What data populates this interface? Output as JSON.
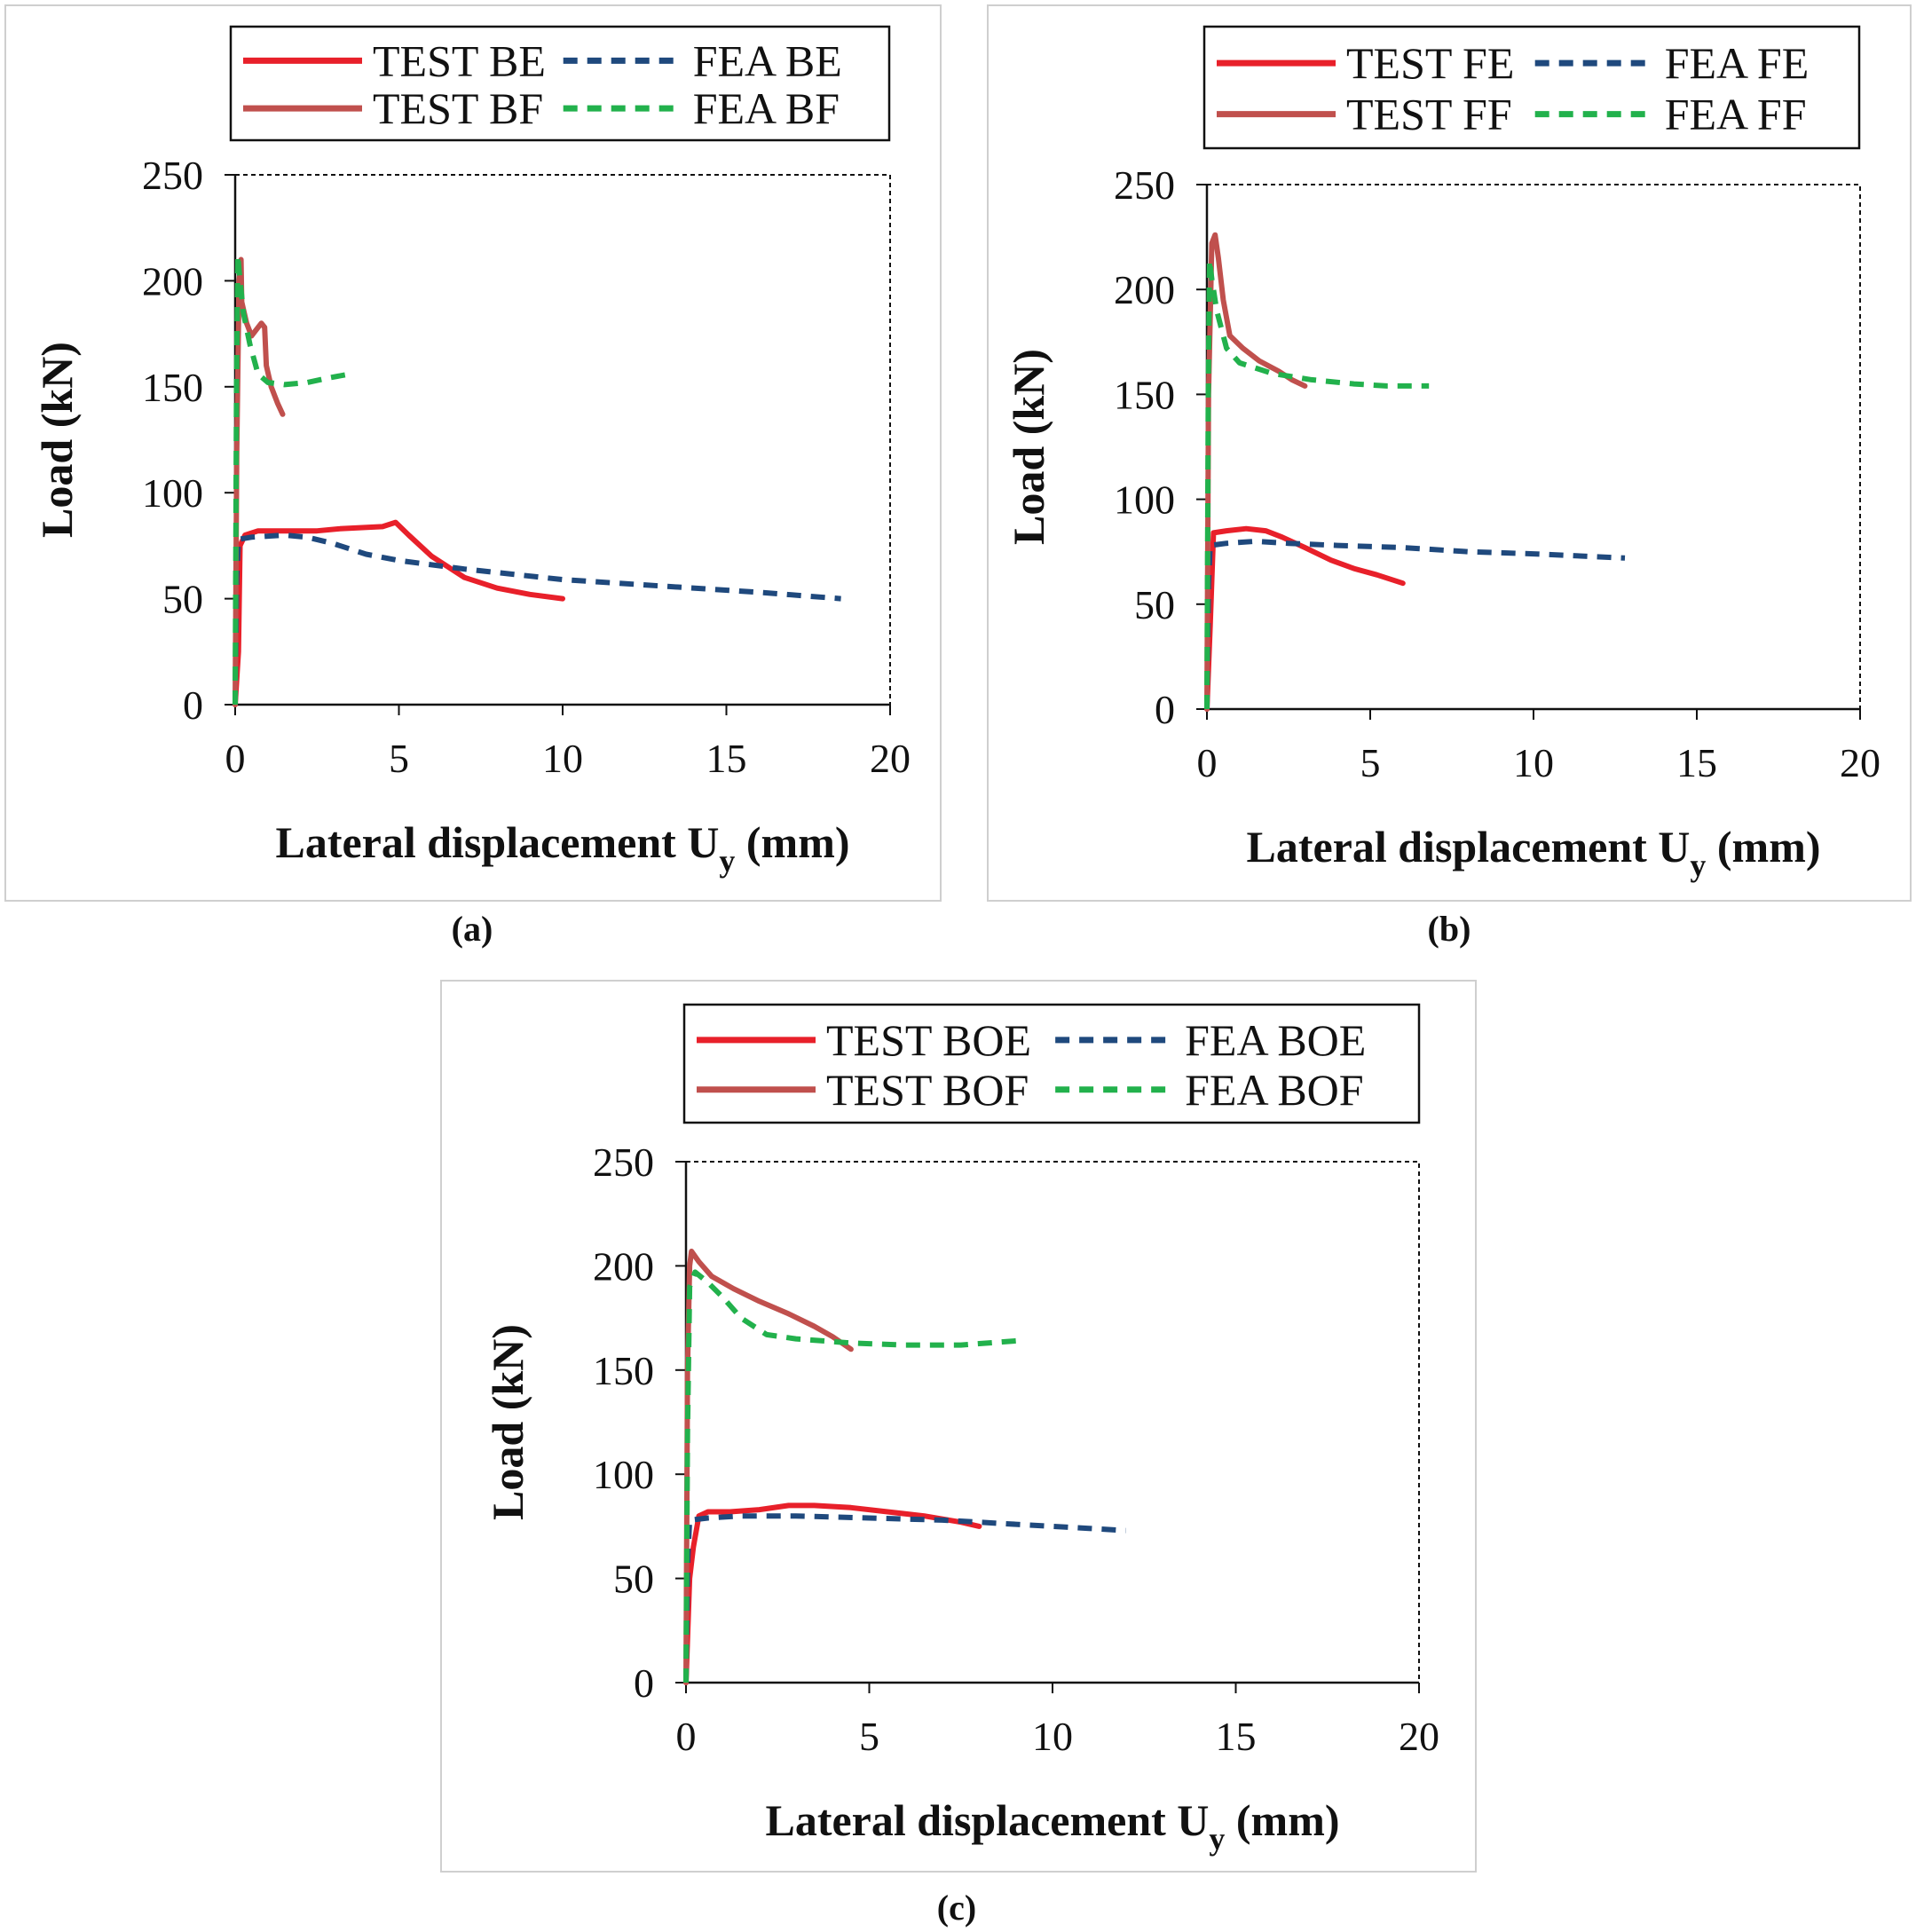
{
  "colors": {
    "test_e": "#e8202a",
    "test_f": "#c0504d",
    "fea_e": "#1f497d",
    "fea_f": "#22b14c",
    "panel_border": "#cfcfcf",
    "axis": "#111111"
  },
  "chart_data": [
    {
      "id": "a",
      "type": "line",
      "caption": "(a)",
      "xlabel": "Lateral displacement U",
      "xlabel_sub": "y",
      "xlabel_unit": "(mm)",
      "ylabel": "Load (kN)",
      "xlim": [
        0,
        20
      ],
      "ylim": [
        0,
        250
      ],
      "xticks": [
        0,
        5,
        10,
        15,
        20
      ],
      "yticks": [
        0,
        50,
        100,
        150,
        200,
        250
      ],
      "legend_position": "top",
      "series": [
        {
          "name": "TEST BE",
          "style": "solid",
          "colorKey": "test_e",
          "points": [
            [
              0,
              0
            ],
            [
              0.1,
              25
            ],
            [
              0.15,
              75
            ],
            [
              0.3,
              80
            ],
            [
              0.7,
              82
            ],
            [
              1.5,
              82
            ],
            [
              2.5,
              82
            ],
            [
              3.2,
              83
            ],
            [
              4.5,
              84
            ],
            [
              4.9,
              86
            ],
            [
              5.3,
              80
            ],
            [
              6,
              70
            ],
            [
              7,
              60
            ],
            [
              8,
              55
            ],
            [
              9,
              52
            ],
            [
              10,
              50
            ]
          ]
        },
        {
          "name": "FEA BE",
          "style": "dashed",
          "colorKey": "fea_e",
          "points": [
            [
              0,
              0
            ],
            [
              0.05,
              60
            ],
            [
              0.1,
              78
            ],
            [
              0.5,
              79
            ],
            [
              1.5,
              80
            ],
            [
              2.2,
              79
            ],
            [
              3,
              76
            ],
            [
              4,
              71
            ],
            [
              5,
              68
            ],
            [
              7,
              64
            ],
            [
              10,
              59
            ],
            [
              13,
              56
            ],
            [
              16,
              53
            ],
            [
              18.5,
              50
            ]
          ]
        },
        {
          "name": "TEST BF",
          "style": "solid",
          "colorKey": "test_f",
          "points": [
            [
              0,
              0
            ],
            [
              0.05,
              120
            ],
            [
              0.12,
              200
            ],
            [
              0.18,
              210
            ],
            [
              0.2,
              190
            ],
            [
              0.35,
              180
            ],
            [
              0.5,
              174
            ],
            [
              0.7,
              178
            ],
            [
              0.8,
              180
            ],
            [
              0.9,
              178
            ],
            [
              0.95,
              160
            ],
            [
              1.1,
              150
            ],
            [
              1.3,
              142
            ],
            [
              1.45,
              137
            ]
          ]
        },
        {
          "name": "FEA BF",
          "style": "dashed",
          "colorKey": "fea_f",
          "points": [
            [
              0,
              0
            ],
            [
              0.04,
              150
            ],
            [
              0.08,
              212
            ],
            [
              0.12,
              205
            ],
            [
              0.25,
              185
            ],
            [
              0.45,
              170
            ],
            [
              0.7,
              156
            ],
            [
              1,
              152
            ],
            [
              1.5,
              151
            ],
            [
              2.2,
              152
            ],
            [
              2.8,
              154
            ],
            [
              3.5,
              156
            ]
          ]
        }
      ]
    },
    {
      "id": "b",
      "type": "line",
      "caption": "(b)",
      "xlabel": "Lateral displacement U",
      "xlabel_sub": "y",
      "xlabel_unit": "(mm)",
      "ylabel": "Load (kN)",
      "xlim": [
        0,
        20
      ],
      "ylim": [
        0,
        250
      ],
      "xticks": [
        0,
        5,
        10,
        15,
        20
      ],
      "yticks": [
        0,
        50,
        100,
        150,
        200,
        250
      ],
      "legend_position": "top",
      "series": [
        {
          "name": "TEST FE",
          "style": "solid",
          "colorKey": "test_e",
          "points": [
            [
              0,
              0
            ],
            [
              0.1,
              40
            ],
            [
              0.2,
              84
            ],
            [
              0.6,
              85
            ],
            [
              1.2,
              86
            ],
            [
              1.8,
              85
            ],
            [
              2.3,
              82
            ],
            [
              3,
              77
            ],
            [
              3.8,
              71
            ],
            [
              4.5,
              67
            ],
            [
              5.2,
              64
            ],
            [
              6,
              60
            ]
          ]
        },
        {
          "name": "FEA FE",
          "style": "dashed",
          "colorKey": "fea_e",
          "points": [
            [
              0,
              0
            ],
            [
              0.05,
              60
            ],
            [
              0.1,
              78
            ],
            [
              0.6,
              79
            ],
            [
              1.5,
              80
            ],
            [
              2.5,
              79
            ],
            [
              4,
              78
            ],
            [
              6,
              77
            ],
            [
              8,
              75
            ],
            [
              10,
              74
            ],
            [
              12.8,
              72
            ]
          ]
        },
        {
          "name": "TEST FF",
          "style": "solid",
          "colorKey": "test_f",
          "points": [
            [
              0,
              0
            ],
            [
              0.05,
              150
            ],
            [
              0.15,
              222
            ],
            [
              0.25,
              226
            ],
            [
              0.35,
              215
            ],
            [
              0.5,
              195
            ],
            [
              0.7,
              178
            ],
            [
              1.1,
              172
            ],
            [
              1.6,
              166
            ],
            [
              2.2,
              161
            ],
            [
              2.6,
              157
            ],
            [
              3,
              154
            ]
          ]
        },
        {
          "name": "FEA FF",
          "style": "dashed",
          "colorKey": "fea_f",
          "points": [
            [
              0,
              0
            ],
            [
              0.04,
              150
            ],
            [
              0.08,
              214
            ],
            [
              0.15,
              205
            ],
            [
              0.3,
              190
            ],
            [
              0.6,
              172
            ],
            [
              1,
              165
            ],
            [
              2,
              160
            ],
            [
              3.2,
              157
            ],
            [
              4.5,
              155
            ],
            [
              5.5,
              154
            ],
            [
              6.8,
              154
            ]
          ]
        }
      ]
    },
    {
      "id": "c",
      "type": "line",
      "caption": "(c)",
      "xlabel": "Lateral displacement U",
      "xlabel_sub": "y",
      "xlabel_unit": "(mm)",
      "ylabel": "Load (kN)",
      "xlim": [
        0,
        20
      ],
      "ylim": [
        0,
        250
      ],
      "xticks": [
        0,
        5,
        10,
        15,
        20
      ],
      "yticks": [
        0,
        50,
        100,
        150,
        200,
        250
      ],
      "legend_position": "top",
      "series": [
        {
          "name": "TEST BOE",
          "style": "solid",
          "colorKey": "test_e",
          "points": [
            [
              0,
              0
            ],
            [
              0.1,
              50
            ],
            [
              0.2,
              65
            ],
            [
              0.35,
              80
            ],
            [
              0.6,
              82
            ],
            [
              1.2,
              82
            ],
            [
              2,
              83
            ],
            [
              2.8,
              85
            ],
            [
              3.5,
              85
            ],
            [
              4.5,
              84
            ],
            [
              5.5,
              82
            ],
            [
              6.5,
              80
            ],
            [
              7.5,
              77
            ],
            [
              8,
              75
            ]
          ]
        },
        {
          "name": "FEA BOE",
          "style": "dashed",
          "colorKey": "fea_e",
          "points": [
            [
              0,
              0
            ],
            [
              0.05,
              60
            ],
            [
              0.1,
              78
            ],
            [
              0.6,
              79
            ],
            [
              1.5,
              80
            ],
            [
              3,
              80
            ],
            [
              5,
              79
            ],
            [
              7,
              78
            ],
            [
              9,
              76
            ],
            [
              11,
              74
            ],
            [
              12,
              73
            ]
          ]
        },
        {
          "name": "TEST BOF",
          "style": "solid",
          "colorKey": "test_f",
          "points": [
            [
              0,
              0
            ],
            [
              0.04,
              150
            ],
            [
              0.1,
              200
            ],
            [
              0.15,
              207
            ],
            [
              0.35,
              202
            ],
            [
              0.7,
              195
            ],
            [
              1.3,
              189
            ],
            [
              2,
              183
            ],
            [
              2.8,
              177
            ],
            [
              3.5,
              171
            ],
            [
              4,
              166
            ],
            [
              4.5,
              160
            ]
          ]
        },
        {
          "name": "FEA BOF",
          "style": "dashed",
          "colorKey": "fea_f",
          "points": [
            [
              0,
              0
            ],
            [
              0.04,
              120
            ],
            [
              0.1,
              190
            ],
            [
              0.25,
              197
            ],
            [
              0.6,
              192
            ],
            [
              1,
              185
            ],
            [
              1.5,
              175
            ],
            [
              2.2,
              167
            ],
            [
              3,
              165
            ],
            [
              4.5,
              163
            ],
            [
              6,
              162
            ],
            [
              7.5,
              162
            ],
            [
              9,
              164
            ]
          ]
        }
      ]
    }
  ]
}
